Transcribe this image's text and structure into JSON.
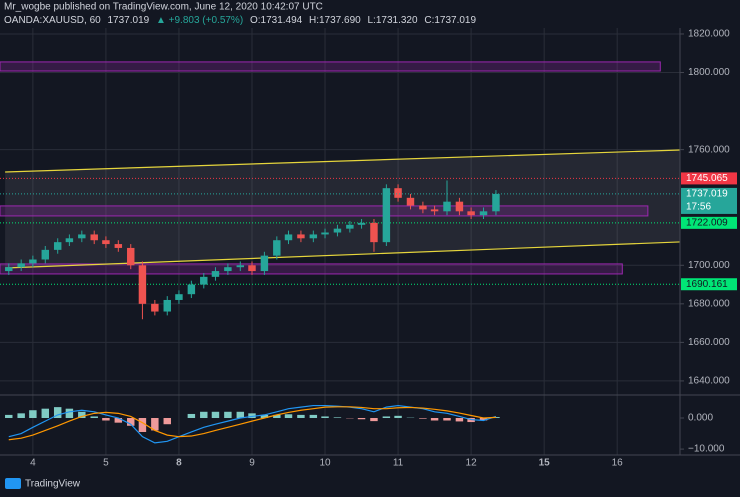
{
  "chart_data": {
    "type": "candlestick",
    "title": "Mr_wogbe published on TradingView.com, June 12, 2020 10:42:07 UTC",
    "symbol": "OANDA:XAUUSD, 60",
    "last": 1737.019,
    "change": "▲ +9.803 (+0.57%)",
    "ohlc_text": [
      "O:1731.494",
      "H:1737.690",
      "L:1731.320",
      "C:1737.019"
    ],
    "countdown": "17:56",
    "up_color": "#26a69a",
    "down_color": "#ef5350",
    "xlim": [
      -0.45,
      8.86
    ],
    "xticks": [
      {
        "value": 0,
        "label": "4"
      },
      {
        "value": 1,
        "label": "5"
      },
      {
        "value": 2,
        "label": "8"
      },
      {
        "value": 3,
        "label": "9"
      },
      {
        "value": 4,
        "label": "10"
      },
      {
        "value": 5,
        "label": "11"
      },
      {
        "value": 6,
        "label": "12"
      },
      {
        "value": 7,
        "label": "15"
      },
      {
        "value": 8,
        "label": "16"
      }
    ],
    "ylim": [
      1632.7,
      1823.1
    ],
    "yticks": [
      {
        "value": 1640,
        "label": "1640.000"
      },
      {
        "value": 1660,
        "label": "1660.000"
      },
      {
        "value": 1680,
        "label": "1680.000"
      },
      {
        "value": 1700,
        "label": "1700.000"
      },
      {
        "value": 1760,
        "label": "1760.000"
      },
      {
        "value": 1800,
        "label": "1800.000"
      },
      {
        "value": 1820,
        "label": "1820.000"
      }
    ],
    "grid": true,
    "x": [
      -0.33,
      -0.16,
      0.0,
      0.17,
      0.34,
      0.5,
      0.67,
      0.84,
      1.0,
      1.17,
      1.34,
      1.5,
      1.67,
      1.84,
      2.0,
      2.17,
      2.34,
      2.5,
      2.67,
      2.84,
      3.0,
      3.17,
      3.34,
      3.5,
      3.67,
      3.84,
      4.0,
      4.17,
      4.34,
      4.5,
      4.67,
      4.84,
      5.0,
      5.17,
      5.34,
      5.5,
      5.67,
      5.84,
      6.0,
      6.17,
      6.34
    ],
    "open": [
      1697,
      1699,
      1701,
      1703,
      1708,
      1712,
      1714,
      1716,
      1713,
      1711,
      1709,
      1700,
      1680,
      1676,
      1682,
      1685,
      1690,
      1694,
      1697,
      1699,
      1700,
      1697,
      1705,
      1713,
      1716,
      1714,
      1716,
      1717,
      1719,
      1721,
      1722,
      1712,
      1740,
      1735,
      1731,
      1729,
      1728,
      1733,
      1728,
      1726,
      1728
    ],
    "high": [
      1701,
      1703,
      1705,
      1710,
      1714,
      1716,
      1718,
      1718,
      1715,
      1713,
      1711,
      1702,
      1682,
      1684,
      1687,
      1692,
      1696,
      1699,
      1701,
      1702,
      1702,
      1707,
      1715,
      1718,
      1718,
      1718,
      1719,
      1721,
      1723,
      1724,
      1724,
      1742,
      1742,
      1737,
      1733,
      1731,
      1744,
      1735,
      1730,
      1730,
      1739
    ],
    "low": [
      1695,
      1697,
      1699,
      1701,
      1706,
      1710,
      1712,
      1711,
      1709,
      1707,
      1698,
      1672,
      1674,
      1674,
      1680,
      1683,
      1688,
      1692,
      1695,
      1697,
      1695,
      1695,
      1703,
      1711,
      1712,
      1712,
      1714,
      1715,
      1717,
      1719,
      1707,
      1710,
      1733,
      1729,
      1727,
      1726,
      1726,
      1726,
      1724,
      1724,
      1726
    ],
    "close": [
      1699,
      1701,
      1703,
      1708,
      1712,
      1714,
      1716,
      1713,
      1711,
      1709,
      1700,
      1680,
      1676,
      1682,
      1685,
      1690,
      1694,
      1697,
      1699,
      1700,
      1697,
      1705,
      1713,
      1716,
      1714,
      1716,
      1717,
      1719,
      1721,
      1722,
      1712,
      1740,
      1735,
      1731,
      1729,
      1728,
      1733,
      1728,
      1726,
      1728,
      1737.019
    ],
    "channel": [
      {
        "x": [
          -0.38,
          8.86
        ],
        "y": [
          1748.4,
          1759.8
        ]
      },
      {
        "x": [
          -0.38,
          8.86
        ],
        "y": [
          1698.6,
          1712.1
        ]
      }
    ],
    "channel_color": "#e5d53c",
    "zones": [
      {
        "x": [
          -0.45,
          8.59
        ],
        "y": [
          1800.8,
          1805.5
        ]
      },
      {
        "x": [
          -0.45,
          8.42
        ],
        "y": [
          1725.6,
          1730.8
        ]
      },
      {
        "x": [
          -0.45,
          8.07
        ],
        "y": [
          1695.5,
          1700.7
        ]
      }
    ],
    "zone_color": "#9c27b0",
    "levels": [
      {
        "value": 1745.065,
        "color": "#f23645"
      },
      {
        "value": 1722.009,
        "color": "#00e676"
      },
      {
        "value": 1690.161,
        "color": "#00e676"
      }
    ],
    "macd": {
      "ylim": [
        -11.9,
        7.4
      ],
      "yticks": [
        {
          "value": 0,
          "label": "0.000"
        },
        {
          "value": -10,
          "label": "−10.000"
        }
      ],
      "histogram": [
        1,
        1.5,
        2.5,
        3,
        3.5,
        3,
        2,
        0.5,
        -0.8,
        -1.5,
        -2.5,
        -4.5,
        -4,
        -2,
        0,
        1.3,
        2,
        2,
        2,
        2,
        1.5,
        1,
        1,
        1.2,
        1,
        1,
        0.5,
        0.2,
        -0.1,
        -0.4,
        -1,
        0.5,
        0.7,
        0.1,
        -0.2,
        -0.8,
        -0.8,
        -1.1,
        -1.3,
        -0.8,
        0.3
      ],
      "series": [
        {
          "color": "#2196f3",
          "values": [
            -6,
            -5,
            -3,
            -1,
            1,
            2,
            2.5,
            2,
            1,
            0,
            -2,
            -6,
            -8,
            -7.5,
            -6,
            -4.5,
            -3,
            -2,
            -1,
            0,
            0.5,
            1,
            2,
            3,
            3.5,
            4,
            4,
            3.8,
            3.5,
            3,
            2,
            3.5,
            4,
            3.5,
            3,
            2,
            1.5,
            0.5,
            -0.5,
            -0.8,
            0.5
          ]
        },
        {
          "color": "#ff9800",
          "values": [
            -7,
            -6.5,
            -5.5,
            -4,
            -2.5,
            -1,
            0.5,
            1.5,
            1.8,
            1.5,
            0.5,
            -1.5,
            -4,
            -5.5,
            -6,
            -5.8,
            -5,
            -4,
            -3,
            -2,
            -1,
            0,
            1,
            1.8,
            2.5,
            3,
            3.5,
            3.6,
            3.6,
            3.4,
            3,
            3,
            3.3,
            3.4,
            3.2,
            2.8,
            2.3,
            1.6,
            0.8,
            0,
            0.2
          ]
        }
      ]
    }
  },
  "footer": {
    "brand": "TradingView"
  }
}
